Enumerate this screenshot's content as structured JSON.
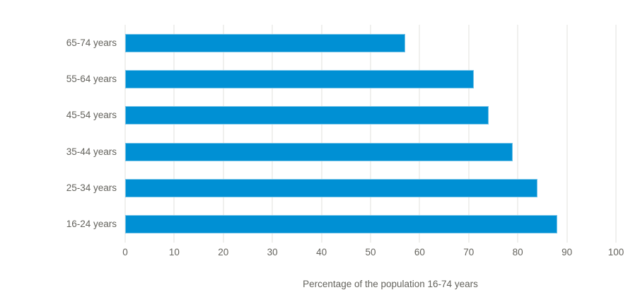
{
  "chart_data": {
    "type": "bar",
    "orientation": "horizontal",
    "title": "",
    "categories": [
      "65-74 years",
      "55-64 years",
      "45-54 years",
      "35-44 years",
      "25-34 years",
      "16-24 years"
    ],
    "values": [
      57,
      71,
      74,
      79,
      84,
      88
    ],
    "xlabel": "Percentage of the population 16-74 years",
    "ylabel": "",
    "xlim": [
      0,
      100
    ],
    "xticks": [
      0,
      10,
      20,
      30,
      40,
      50,
      60,
      70,
      80,
      90,
      100
    ],
    "grid": "vertical-gridlines",
    "legend": "none",
    "bar_color": "#0090d4",
    "gridline_color": "#e0e0dd",
    "text_color": "#64635d",
    "background_color": "#ffffff"
  }
}
